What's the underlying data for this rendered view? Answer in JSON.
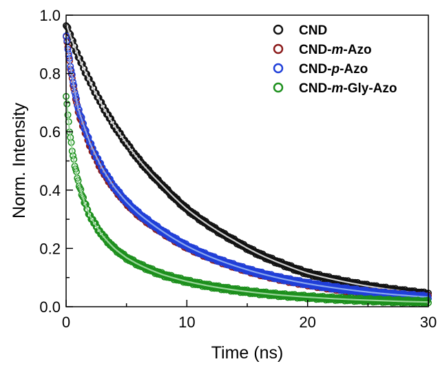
{
  "chart_data": {
    "type": "scatter",
    "xlabel": "Time (ns)",
    "ylabel": "Norm. Intensity",
    "xlim": [
      0,
      30
    ],
    "ylim": [
      0,
      1.0
    ],
    "x_ticks": [
      "0",
      "10",
      "20",
      "30"
    ],
    "y_ticks": [
      "0.0",
      "0.2",
      "0.4",
      "0.6",
      "0.8",
      "1.0"
    ],
    "legend_position": "top-right",
    "grid": false,
    "series": [
      {
        "name": "CND",
        "legend_parts": [
          {
            "text": "CND",
            "italic": false
          }
        ],
        "color": "#111111",
        "fit_color": "#cfcfcf",
        "x": [
          0,
          1,
          2,
          3,
          4,
          5,
          6,
          8,
          10,
          12,
          14,
          16,
          18,
          20,
          22,
          24,
          26,
          28,
          30
        ],
        "y": [
          0.97,
          0.86,
          0.77,
          0.69,
          0.62,
          0.56,
          0.505,
          0.415,
          0.335,
          0.275,
          0.225,
          0.18,
          0.145,
          0.115,
          0.095,
          0.078,
          0.064,
          0.053,
          0.043
        ]
      },
      {
        "name": "CND-m-Azo",
        "legend_parts": [
          {
            "text": "CND-",
            "italic": false
          },
          {
            "text": "m",
            "italic": true
          },
          {
            "text": "-Azo",
            "italic": false
          }
        ],
        "color": "#8b1a1a",
        "fit_color": "#c07070",
        "x": [
          0,
          0.5,
          1,
          2,
          3,
          4,
          5,
          6,
          8,
          10,
          12,
          14,
          16,
          18,
          20,
          22,
          24,
          26,
          28,
          30
        ],
        "y": [
          0.93,
          0.78,
          0.67,
          0.55,
          0.465,
          0.405,
          0.355,
          0.315,
          0.255,
          0.205,
          0.168,
          0.138,
          0.113,
          0.093,
          0.077,
          0.064,
          0.053,
          0.045,
          0.038,
          0.032
        ]
      },
      {
        "name": "CND-p-Azo",
        "legend_parts": [
          {
            "text": "CND-",
            "italic": false
          },
          {
            "text": "p",
            "italic": true
          },
          {
            "text": "-Azo",
            "italic": false
          }
        ],
        "color": "#1f3fd9",
        "fit_color": "#8aa8f0",
        "x": [
          0,
          0.5,
          1,
          2,
          3,
          4,
          5,
          6,
          8,
          10,
          12,
          14,
          16,
          18,
          20,
          22,
          24,
          26,
          28,
          30
        ],
        "y": [
          0.93,
          0.79,
          0.68,
          0.56,
          0.475,
          0.41,
          0.36,
          0.32,
          0.258,
          0.208,
          0.17,
          0.14,
          0.115,
          0.095,
          0.079,
          0.066,
          0.055,
          0.046,
          0.039,
          0.033
        ]
      },
      {
        "name": "CND-m-Gly-Azo",
        "legend_parts": [
          {
            "text": "CND-",
            "italic": false
          },
          {
            "text": "m",
            "italic": true
          },
          {
            "text": "-Gly-Azo",
            "italic": false
          }
        ],
        "color": "#1c8f1c",
        "fit_color": "#9ad69a",
        "x": [
          0,
          0.3,
          0.6,
          1,
          1.5,
          2,
          3,
          4,
          5,
          6,
          8,
          10,
          12,
          14,
          16,
          18,
          20,
          22,
          24,
          26,
          28,
          30
        ],
        "y": [
          0.72,
          0.6,
          0.51,
          0.43,
          0.36,
          0.31,
          0.245,
          0.2,
          0.168,
          0.145,
          0.11,
          0.087,
          0.07,
          0.057,
          0.047,
          0.039,
          0.033,
          0.028,
          0.024,
          0.021,
          0.018,
          0.016
        ]
      }
    ]
  }
}
